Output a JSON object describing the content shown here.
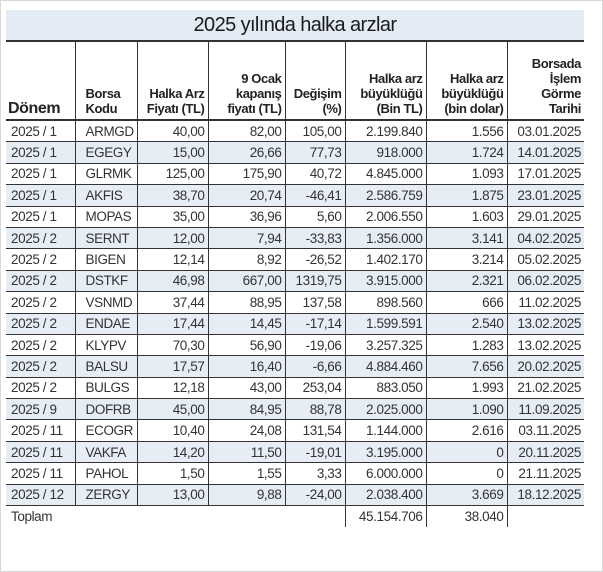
{
  "title": "2025 yılında halka arzlar",
  "headers": [
    "Dönem",
    "Borsa Kodu",
    "Halka Arz Fiyatı (TL)",
    "9 Ocak kapanış fiyatı (TL)",
    "Değişim (%)",
    "Halka arz büyüklüğü (Bin TL)",
    "Halka arz büyüklüğü (bin dolar)",
    "Borsada İşlem Görme Tarihi"
  ],
  "rows": [
    [
      "2025 / 1",
      "ARMGD",
      "40,00",
      "82,00",
      "105,00",
      "2.199.840",
      "1.556",
      "03.01.2025"
    ],
    [
      "2025 / 1",
      "EGEGY",
      "15,00",
      "26,66",
      "77,73",
      "918.000",
      "1.724",
      "14.01.2025"
    ],
    [
      "2025 / 1",
      "GLRMK",
      "125,00",
      "175,90",
      "40,72",
      "4.845.000",
      "1.093",
      "17.01.2025"
    ],
    [
      "2025 / 1",
      "AKFIS",
      "38,70",
      "20,74",
      "-46,41",
      "2.586.759",
      "1.875",
      "23.01.2025"
    ],
    [
      "2025 / 1",
      "MOPAS",
      "35,00",
      "36,96",
      "5,60",
      "2.006.550",
      "1.603",
      "29.01.2025"
    ],
    [
      "2025 / 2",
      "SERNT",
      "12,00",
      "7,94",
      "-33,83",
      "1.356.000",
      "3.141",
      "04.02.2025"
    ],
    [
      "2025 / 2",
      "BIGEN",
      "12,14",
      "8,92",
      "-26,52",
      "1.402.170",
      "3.214",
      "05.02.2025"
    ],
    [
      "2025 / 2",
      "DSTKF",
      "46,98",
      "667,00",
      "1319,75",
      "3.915.000",
      "2.321",
      "06.02.2025"
    ],
    [
      "2025 / 2",
      "VSNMD",
      "37,44",
      "88,95",
      "137,58",
      "898.560",
      "666",
      "11.02.2025"
    ],
    [
      "2025 / 2",
      "ENDAE",
      "17,44",
      "14,45",
      "-17,14",
      "1.599.591",
      "2.540",
      "13.02.2025"
    ],
    [
      "2025 / 2",
      "KLYPV",
      "70,30",
      "56,90",
      "-19,06",
      "3.257.325",
      "1.283",
      "13.02.2025"
    ],
    [
      "2025 / 2",
      "BALSU",
      "17,57",
      "16,40",
      "-6,66",
      "4.884.460",
      "7.656",
      "20.02.2025"
    ],
    [
      "2025 / 2",
      "BULGS",
      "12,18",
      "43,00",
      "253,04",
      "883.050",
      "1.993",
      "21.02.2025"
    ],
    [
      "2025 / 9",
      "DOFRB",
      "45,00",
      "84,95",
      "88,78",
      "2.025.000",
      "1.090",
      "11.09.2025"
    ],
    [
      "2025 / 11",
      "ECOGR",
      "10,40",
      "24,08",
      "131,54",
      "1.144.000",
      "2.616",
      "03.11.2025"
    ],
    [
      "2025 / 11",
      "VAKFA",
      "14,20",
      "11,50",
      "-19,01",
      "3.195.000",
      "0",
      "20.11.2025"
    ],
    [
      "2025 / 11",
      "PAHOL",
      "1,50",
      "1,55",
      "3,33",
      "6.000.000",
      "0",
      "21.11.2025"
    ],
    [
      "2025 / 12",
      "ZERGY",
      "13,00",
      "9,88",
      "-24,00",
      "2.038.400",
      "3.669",
      "18.12.2025"
    ]
  ],
  "total": {
    "label": "Toplam",
    "tl": "45.154.706",
    "usd": "38.040"
  }
}
